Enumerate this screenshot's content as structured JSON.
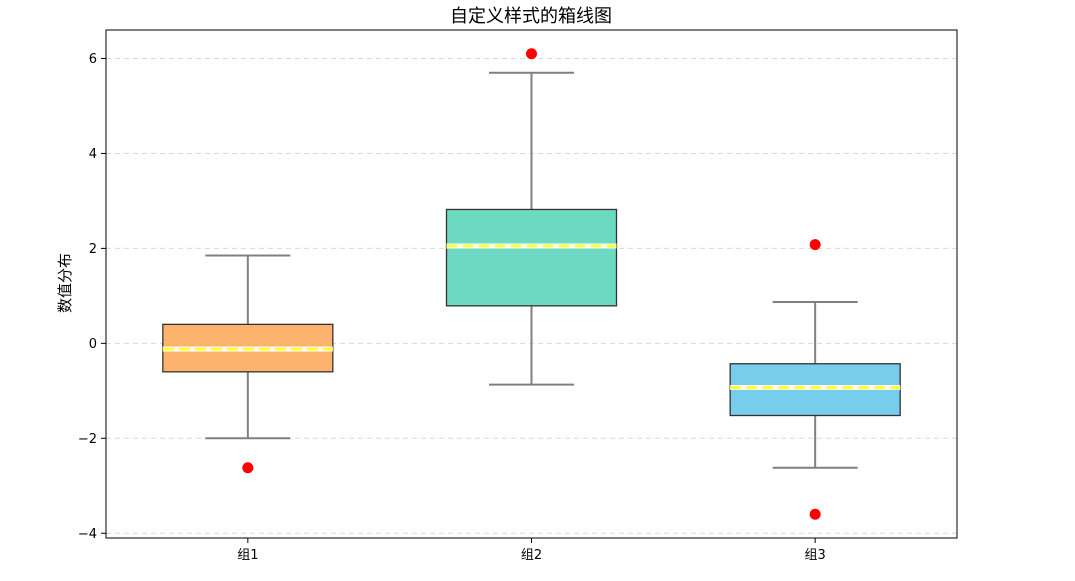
{
  "chart_data": {
    "type": "boxplot",
    "title": "自定义样式的箱线图",
    "xlabel": "",
    "ylabel": "数值分布",
    "ylim": [
      -4.1,
      6.6
    ],
    "yticks": [
      -4,
      -2,
      0,
      2,
      4,
      6
    ],
    "grid": "horizontal-dashed",
    "categories": [
      "组1",
      "组2",
      "组3"
    ],
    "groups": [
      {
        "category": "组1",
        "whisker_low": -2.0,
        "q1": -0.6,
        "median": -0.12,
        "q3": 0.4,
        "whisker_high": 1.85,
        "outliers": [
          -2.62
        ],
        "box_color": "#FDB36E"
      },
      {
        "category": "组2",
        "whisker_low": -0.87,
        "q1": 0.79,
        "median": 2.05,
        "q3": 2.82,
        "whisker_high": 5.7,
        "outliers": [
          6.1
        ],
        "box_color": "#6DD9C1"
      },
      {
        "category": "组3",
        "whisker_low": -2.62,
        "q1": -1.52,
        "median": -0.93,
        "q3": -0.43,
        "whisker_high": 0.87,
        "outliers": [
          2.08,
          -3.6
        ],
        "box_color": "#76CDEC"
      }
    ],
    "style": {
      "whisker_color": "#808080",
      "box_edge_color": "#333333",
      "median_color": "#FFFF33",
      "median_outline": "#FFFFFF",
      "outlier_color": "#FF0000",
      "grid_color": "#D9D9D9"
    }
  }
}
